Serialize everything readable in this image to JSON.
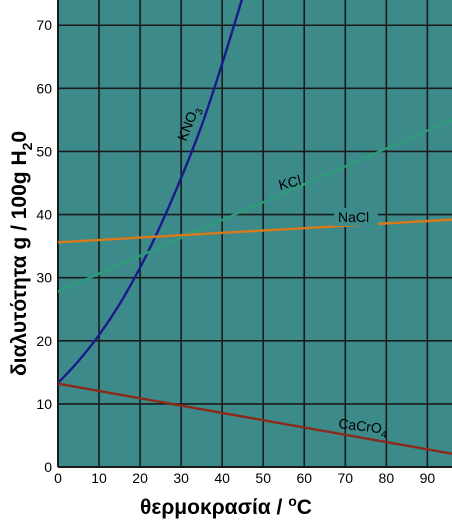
{
  "chart_data": {
    "type": "line",
    "xlabel": "θερμοκρασία / ",
    "xlabel_unit_sup": "o",
    "xlabel_unit": "C",
    "ylabel": "διαλυτότητα g / 100g H",
    "ylabel_sub": "2",
    "ylabel_end": "0",
    "xlim": [
      0,
      96
    ],
    "ylim": [
      0,
      74
    ],
    "x_ticks": [
      0,
      10,
      20,
      30,
      40,
      50,
      60,
      70,
      80,
      90
    ],
    "y_ticks": [
      0,
      10,
      20,
      30,
      40,
      50,
      60,
      70
    ],
    "x_tick_labels": [
      "0",
      "10",
      "20",
      "30",
      "40",
      "50",
      "60",
      "70",
      "80",
      "90"
    ],
    "y_tick_labels": [
      "0",
      "10",
      "20",
      "30",
      "40",
      "50",
      "60",
      "70"
    ],
    "grid": true,
    "background_color": "#3d8a8a",
    "grid_color": "#1a1a1a",
    "series": [
      {
        "name": "KNO3",
        "label_main": "KNO",
        "label_sub": "3",
        "color": "#1a1a8c",
        "x": [
          0,
          5,
          10,
          15,
          20,
          25,
          30,
          35,
          40,
          45,
          50
        ],
        "y": [
          13.3,
          16.8,
          20.9,
          25.8,
          31.6,
          38.3,
          45.8,
          54.1,
          63.9,
          74.5,
          85.5
        ]
      },
      {
        "name": "KCl",
        "label_main": "KCl",
        "label_sub": "",
        "color": "#2e9b7a",
        "x": [
          0,
          96
        ],
        "y": [
          27.8,
          55.0
        ]
      },
      {
        "name": "NaCl",
        "label_main": "NaCl",
        "label_sub": "",
        "color": "#d97a1a",
        "x": [
          0,
          96
        ],
        "y": [
          35.6,
          39.2
        ]
      },
      {
        "name": "CaCrO4",
        "label_main": "CaCrO",
        "label_sub": "4",
        "color": "#8c2a1a",
        "x": [
          0,
          96
        ],
        "y": [
          13.2,
          2.1
        ]
      }
    ]
  }
}
